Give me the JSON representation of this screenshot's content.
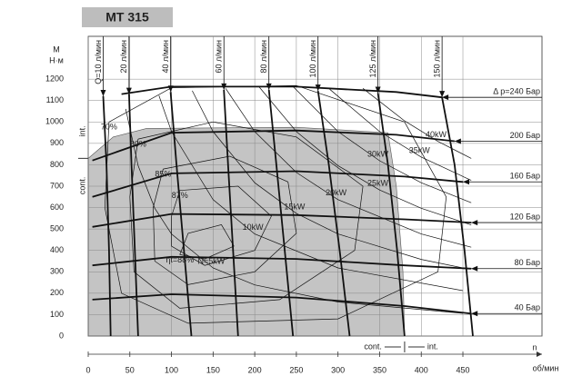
{
  "title": "MT 315",
  "chart_data": {
    "type": "line",
    "y_label": "M",
    "y_unit": "Н·м",
    "x_label": "n",
    "x_unit": "об/мин",
    "zone_cont": "cont.",
    "zone_int": "int.",
    "xlim": [
      0,
      545
    ],
    "ylim": [
      0,
      1400
    ],
    "xticks": [
      0,
      50,
      100,
      150,
      200,
      250,
      300,
      350,
      400,
      450
    ],
    "yticks": [
      0,
      100,
      200,
      300,
      400,
      500,
      600,
      700,
      800,
      900,
      1000,
      1100,
      1200
    ],
    "grid": true,
    "area": {
      "color": "#c4c4c4",
      "x": [
        0,
        0,
        30,
        70,
        250,
        360,
        370,
        378,
        380
      ],
      "values": [
        0,
        830,
        930,
        970,
        975,
        950,
        700,
        300,
        0
      ]
    },
    "flow_lines": [
      {
        "name": "Q=10 л/мин",
        "x": [
          18,
          22,
          25,
          27
        ],
        "values": [
          1120,
          800,
          400,
          0
        ]
      },
      {
        "name": "20 л/мин",
        "x": [
          49,
          52,
          56,
          60
        ],
        "values": [
          1130,
          800,
          400,
          0
        ]
      },
      {
        "name": "40 л/мин",
        "x": [
          99,
          106,
          115,
          124
        ],
        "values": [
          1140,
          800,
          400,
          0
        ]
      },
      {
        "name": "60 л/мин",
        "x": [
          163,
          168,
          174,
          180
        ],
        "values": [
          1150,
          800,
          400,
          0
        ]
      },
      {
        "name": "80 л/мин",
        "x": [
          217,
          226,
          236,
          246
        ],
        "values": [
          1150,
          800,
          400,
          0
        ]
      },
      {
        "name": "100 л/мин",
        "x": [
          276,
          289,
          302,
          314
        ],
        "values": [
          1145,
          800,
          400,
          0
        ]
      },
      {
        "name": "125 л/мин",
        "x": [
          348,
          360,
          371,
          380
        ],
        "values": [
          1135,
          800,
          400,
          0
        ]
      },
      {
        "name": "150 л/мин",
        "x": [
          425,
          440,
          452,
          462
        ],
        "values": [
          1115,
          800,
          400,
          0
        ]
      }
    ],
    "pressure_lines": [
      {
        "name": "Δ р=240 Бар",
        "x": [
          40,
          100,
          250,
          370,
          425
        ],
        "values": [
          1130,
          1165,
          1165,
          1140,
          1115
        ]
      },
      {
        "name": "200 Бар",
        "x": [
          5,
          100,
          250,
          370,
          440
        ],
        "values": [
          820,
          950,
          960,
          940,
          910
        ]
      },
      {
        "name": "160 Бар",
        "x": [
          5,
          100,
          250,
          380,
          450
        ],
        "values": [
          650,
          760,
          770,
          745,
          720
        ]
      },
      {
        "name": "120 Бар",
        "x": [
          5,
          100,
          250,
          380,
          460
        ],
        "values": [
          510,
          570,
          565,
          545,
          530
        ]
      },
      {
        "name": "80 Бар",
        "x": [
          5,
          100,
          250,
          380,
          460
        ],
        "values": [
          330,
          370,
          360,
          330,
          315
        ]
      },
      {
        "name": "40 Бар",
        "x": [
          5,
          100,
          250,
          380,
          460
        ],
        "values": [
          170,
          195,
          180,
          140,
          105
        ]
      }
    ],
    "efficiency_curves": [
      {
        "name": "70%",
        "x": [
          25,
          100,
          250,
          380,
          430,
          420,
          300,
          120,
          40,
          20,
          25
        ],
        "values": [
          1000,
          1160,
          1170,
          1000,
          650,
          300,
          80,
          60,
          200,
          600,
          1000
        ]
      },
      {
        "name": "80%",
        "x": [
          60,
          150,
          250,
          330,
          320,
          230,
          110,
          55,
          50,
          60
        ],
        "values": [
          920,
          1000,
          930,
          700,
          400,
          170,
          130,
          300,
          650,
          920
        ]
      },
      {
        "name": "85%",
        "x": [
          90,
          170,
          240,
          250,
          200,
          120,
          80,
          78,
          90
        ],
        "values": [
          780,
          840,
          720,
          480,
          300,
          240,
          350,
          600,
          780
        ]
      },
      {
        "name": "87%",
        "x": [
          110,
          180,
          220,
          200,
          140,
          100,
          100,
          110
        ],
        "values": [
          680,
          700,
          560,
          400,
          330,
          420,
          560,
          680
        ]
      },
      {
        "name": "ηt=88%",
        "x": [
          110,
          140,
          175,
          160,
          120,
          110
        ],
        "values": [
          380,
          360,
          420,
          520,
          480,
          380
        ]
      }
    ],
    "power_curves": [
      {
        "name": "N=5kW",
        "x": [
          45,
          60,
          80,
          100,
          150,
          200,
          300,
          450
        ],
        "values": [
          1061,
          796,
          597,
          477,
          318,
          239,
          159,
          106
        ]
      },
      {
        "name": "10kW",
        "x": [
          85,
          100,
          150,
          200,
          300,
          450
        ],
        "values": [
          1123,
          955,
          637,
          477,
          318,
          212
        ]
      },
      {
        "name": "15kW",
        "x": [
          125,
          150,
          200,
          250,
          300,
          400,
          450
        ],
        "values": [
          1146,
          955,
          716,
          573,
          477,
          358,
          318
        ]
      },
      {
        "name": "20kW",
        "x": [
          165,
          200,
          250,
          300,
          400,
          460
        ],
        "values": [
          1157,
          955,
          764,
          637,
          477,
          415
        ]
      },
      {
        "name": "25kW",
        "x": [
          205,
          250,
          300,
          350,
          400,
          460
        ],
        "values": [
          1165,
          955,
          796,
          682,
          597,
          519
        ]
      },
      {
        "name": "30kW",
        "x": [
          245,
          300,
          350,
          400,
          460
        ],
        "values": [
          1169,
          955,
          819,
          716,
          623
        ]
      },
      {
        "name": "35kW",
        "x": [
          290,
          350,
          400,
          460
        ],
        "values": [
          1153,
          955,
          836,
          727
        ]
      },
      {
        "name": "40kW",
        "x": [
          330,
          380,
          420,
          460
        ],
        "values": [
          1157,
          1005,
          909,
          830
        ]
      }
    ]
  }
}
